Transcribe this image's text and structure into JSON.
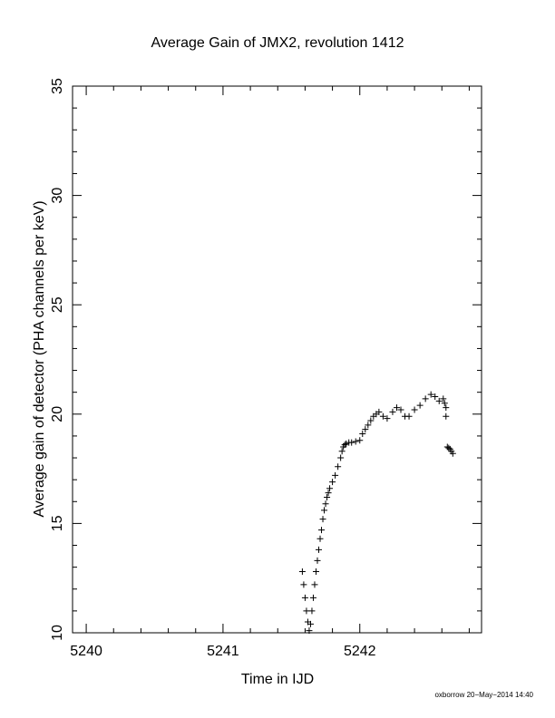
{
  "chart_data": {
    "type": "scatter",
    "title": "Average Gain of JMX2, revolution 1412",
    "x_label": "Time in IJD",
    "y_label": "Average gain of detector (PHA channels per keV)",
    "footnote": "oxborrow 20−May−2014 14:40",
    "marker": "+",
    "color": "#000000",
    "xlim": [
      5239.9,
      5242.89
    ],
    "ylim": [
      10,
      35
    ],
    "xticks": [
      5240,
      5241,
      5242
    ],
    "yticks": [
      10,
      15,
      20,
      25,
      30,
      35
    ],
    "xminorticks": [
      5240.2,
      5240.4,
      5240.6,
      5240.8,
      5241.2,
      5241.4,
      5241.6,
      5241.8,
      5242.2,
      5242.4,
      5242.6,
      5242.8
    ],
    "yminorticks": [
      11,
      12,
      13,
      14,
      16,
      17,
      18,
      19,
      21,
      22,
      23,
      24,
      26,
      27,
      28,
      29,
      31,
      32,
      33,
      34
    ],
    "x": [
      5241.58,
      5241.59,
      5241.6,
      5241.61,
      5241.62,
      5241.63,
      5241.64,
      5241.65,
      5241.66,
      5241.67,
      5241.68,
      5241.69,
      5241.7,
      5241.71,
      5241.72,
      5241.73,
      5241.74,
      5241.75,
      5241.76,
      5241.77,
      5241.78,
      5241.8,
      5241.82,
      5241.84,
      5241.86,
      5241.87,
      5241.88,
      5241.89,
      5241.9,
      5241.92,
      5241.94,
      5241.97,
      5242.0,
      5242.02,
      5242.04,
      5242.06,
      5242.08,
      5242.1,
      5242.12,
      5242.14,
      5242.17,
      5242.2,
      5242.24,
      5242.27,
      5242.3,
      5242.33,
      5242.36,
      5242.4,
      5242.44,
      5242.48,
      5242.52,
      5242.55,
      5242.58,
      5242.61,
      5242.62,
      5242.63,
      5242.63,
      5242.64,
      5242.65,
      5242.66,
      5242.67,
      5242.68
    ],
    "values": [
      12.8,
      12.2,
      11.6,
      11.0,
      10.5,
      10.1,
      10.4,
      11.0,
      11.6,
      12.2,
      12.8,
      13.3,
      13.8,
      14.3,
      14.7,
      15.2,
      15.6,
      15.9,
      16.2,
      16.4,
      16.6,
      16.9,
      17.2,
      17.6,
      18.0,
      18.3,
      18.5,
      18.6,
      18.65,
      18.7,
      18.7,
      18.75,
      18.8,
      19.1,
      19.3,
      19.5,
      19.7,
      19.9,
      20.0,
      20.1,
      19.9,
      19.8,
      20.1,
      20.3,
      20.2,
      19.9,
      19.9,
      20.2,
      20.4,
      20.7,
      20.9,
      20.8,
      20.6,
      20.7,
      20.5,
      20.3,
      19.9,
      18.5,
      18.45,
      18.4,
      18.3,
      18.2
    ]
  }
}
